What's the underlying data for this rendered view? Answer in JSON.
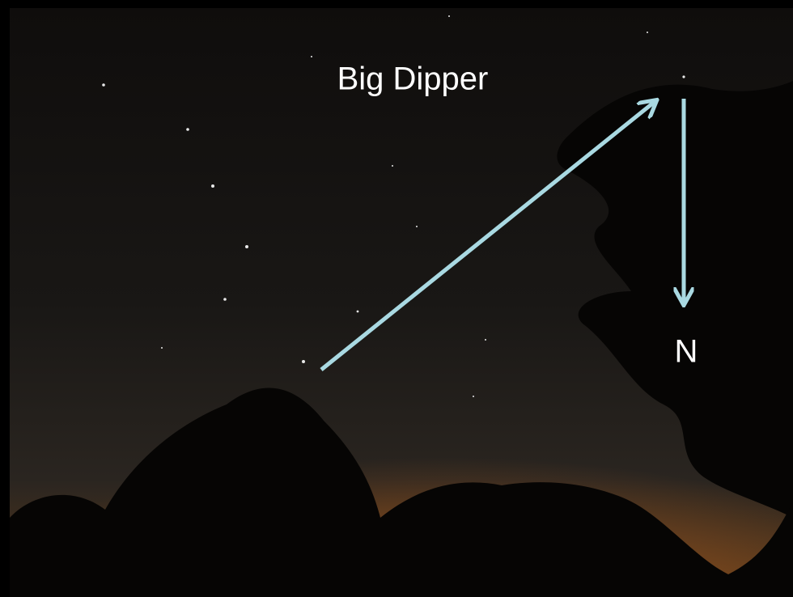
{
  "labels": {
    "title": "Big Dipper",
    "direction": "N"
  }
}
